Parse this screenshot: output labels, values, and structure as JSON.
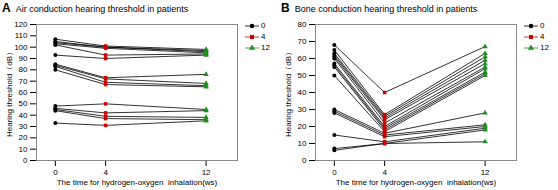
{
  "chart_data": [
    {
      "type": "line",
      "title": "Air conduction hearing threshold in patients",
      "annotation": "A",
      "xlabel": "The time for hydrogen-oxygen  inhalation(ws)",
      "ylabel": "Hearing threshold（dB）",
      "x": [
        0,
        4,
        12
      ],
      "xlim": [
        -1.5,
        14.5
      ],
      "xticks": [
        0,
        4,
        12
      ],
      "ylim": [
        0,
        120
      ],
      "yticks": [
        0,
        10,
        20,
        30,
        40,
        50,
        60,
        70,
        80,
        90,
        100,
        110,
        120
      ],
      "color": "#000000",
      "legend": "upper right",
      "legend_entries": [
        {
          "name": "0",
          "color": "#000000",
          "marker": "circle"
        },
        {
          "name": "4",
          "color": "#cc0000",
          "marker": "square"
        },
        {
          "name": "12",
          "color": "#228B22",
          "marker": "triangle"
        }
      ],
      "series": [
        {
          "values": [
            107,
            101,
            98
          ]
        },
        {
          "values": [
            105,
            100,
            97
          ]
        },
        {
          "values": [
            104,
            100,
            96
          ]
        },
        {
          "values": [
            103,
            99,
            95
          ]
        },
        {
          "values": [
            102,
            93,
            94
          ]
        },
        {
          "values": [
            93,
            90,
            93
          ]
        },
        {
          "values": [
            85,
            73,
            76
          ]
        },
        {
          "values": [
            84,
            72,
            68
          ]
        },
        {
          "values": [
            83,
            69,
            66
          ]
        },
        {
          "values": [
            80,
            67,
            65
          ]
        },
        {
          "values": [
            48,
            50,
            45
          ]
        },
        {
          "values": [
            46,
            42,
            44
          ]
        },
        {
          "values": [
            45,
            39,
            38
          ]
        },
        {
          "values": [
            44,
            37,
            36
          ]
        },
        {
          "values": [
            33,
            31,
            35
          ]
        }
      ]
    },
    {
      "type": "line",
      "title": "Bone conduction hearing threshold in patients",
      "annotation": "B",
      "xlabel": "The time for hydrogen-oxygen  inhalation(ws)",
      "ylabel": "Hearing threshold（dB）",
      "x": [
        0,
        4,
        12
      ],
      "xlim": [
        -1.5,
        14.5
      ],
      "xticks": [
        0,
        4,
        12
      ],
      "ylim": [
        0,
        80
      ],
      "yticks": [
        0,
        10,
        20,
        30,
        40,
        50,
        60,
        70,
        80
      ],
      "color": "#000000",
      "legend": "upper right",
      "legend_entries": [
        {
          "name": "0",
          "color": "#000000",
          "marker": "circle"
        },
        {
          "name": "4",
          "color": "#cc0000",
          "marker": "square"
        },
        {
          "name": "12",
          "color": "#228B22",
          "marker": "triangle"
        }
      ],
      "series": [
        {
          "values": [
            68,
            40,
            67
          ]
        },
        {
          "values": [
            65,
            27,
            63
          ]
        },
        {
          "values": [
            63,
            26,
            61
          ]
        },
        {
          "values": [
            62,
            25,
            59
          ]
        },
        {
          "values": [
            61,
            24,
            57
          ]
        },
        {
          "values": [
            60,
            22,
            55
          ]
        },
        {
          "values": [
            57,
            20,
            54
          ]
        },
        {
          "values": [
            56,
            19,
            52
          ]
        },
        {
          "values": [
            55,
            18,
            51
          ]
        },
        {
          "values": [
            50,
            17,
            50
          ]
        },
        {
          "values": [
            30,
            16,
            28
          ]
        },
        {
          "values": [
            29,
            15,
            21
          ]
        },
        {
          "values": [
            28,
            14,
            20
          ]
        },
        {
          "values": [
            15,
            11,
            19
          ]
        },
        {
          "values": [
            7,
            10,
            18
          ]
        },
        {
          "values": [
            6,
            10,
            11
          ]
        }
      ]
    }
  ]
}
